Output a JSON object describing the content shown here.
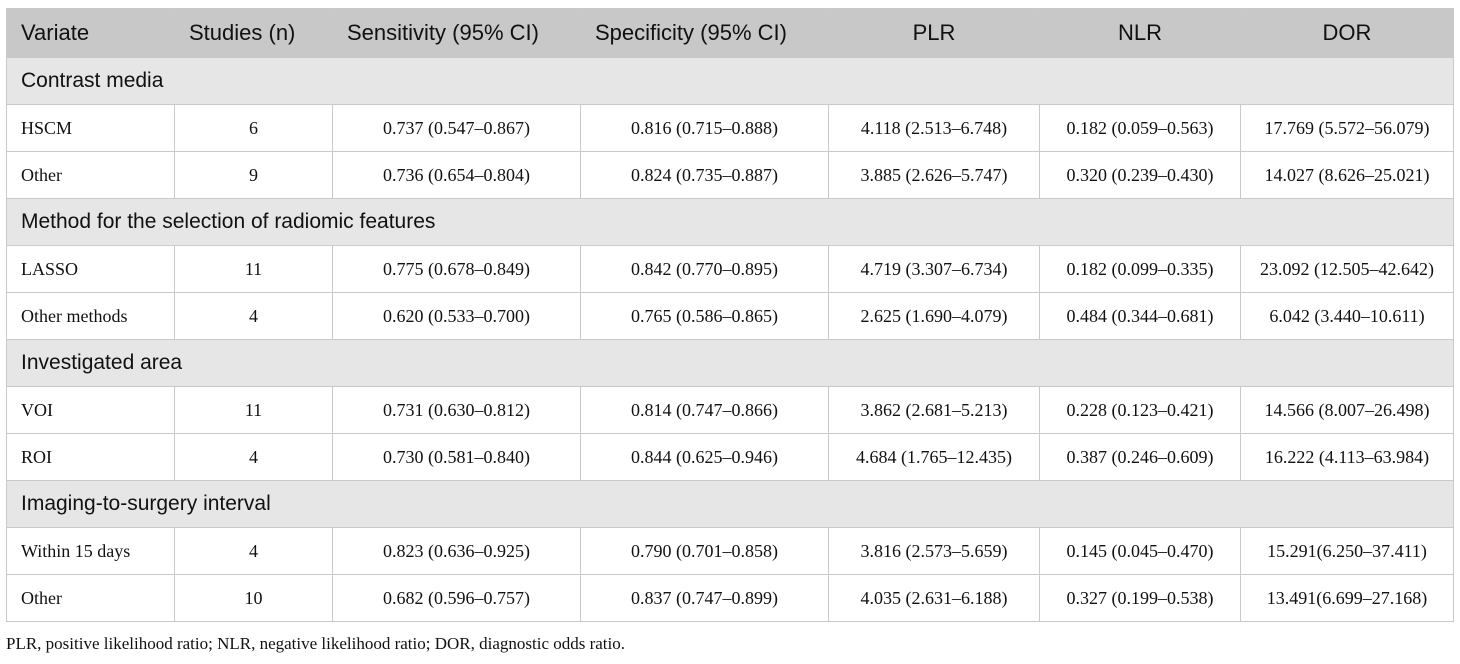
{
  "table": {
    "headers": [
      "Variate",
      "Studies (n)",
      "Sensitivity (95% CI)",
      "Specificity (95% CI)",
      "PLR",
      "NLR",
      "DOR"
    ],
    "groups": [
      {
        "title": "Contrast media",
        "rows": [
          [
            "HSCM",
            "6",
            "0.737 (0.547–0.867)",
            "0.816 (0.715–0.888)",
            "4.118 (2.513–6.748)",
            "0.182 (0.059–0.563)",
            "17.769 (5.572–56.079)"
          ],
          [
            "Other",
            "9",
            "0.736 (0.654–0.804)",
            "0.824 (0.735–0.887)",
            "3.885 (2.626–5.747)",
            "0.320 (0.239–0.430)",
            "14.027 (8.626–25.021)"
          ]
        ]
      },
      {
        "title": "Method for the selection of radiomic features",
        "rows": [
          [
            "LASSO",
            "11",
            "0.775 (0.678–0.849)",
            "0.842 (0.770–0.895)",
            "4.719 (3.307–6.734)",
            "0.182 (0.099–0.335)",
            "23.092 (12.505–42.642)"
          ],
          [
            "Other methods",
            "4",
            "0.620 (0.533–0.700)",
            "0.765 (0.586–0.865)",
            "2.625 (1.690–4.079)",
            "0.484 (0.344–0.681)",
            "6.042 (3.440–10.611)"
          ]
        ]
      },
      {
        "title": "Investigated area",
        "rows": [
          [
            "VOI",
            "11",
            "0.731 (0.630–0.812)",
            "0.814 (0.747–0.866)",
            "3.862 (2.681–5.213)",
            "0.228 (0.123–0.421)",
            "14.566 (8.007–26.498)"
          ],
          [
            "ROI",
            "4",
            "0.730 (0.581–0.840)",
            "0.844 (0.625–0.946)",
            "4.684 (1.765–12.435)",
            "0.387 (0.246–0.609)",
            "16.222 (4.113–63.984)"
          ]
        ]
      },
      {
        "title": "Imaging-to-surgery interval",
        "rows": [
          [
            "Within 15 days",
            "4",
            "0.823 (0.636–0.925)",
            "0.790 (0.701–0.858)",
            "3.816 (2.573–5.659)",
            "0.145 (0.045–0.470)",
            "15.291(6.250–37.411)"
          ],
          [
            "Other",
            "10",
            "0.682 (0.596–0.757)",
            "0.837 (0.747–0.899)",
            "4.035 (2.631–6.188)",
            "0.327 (0.199–0.538)",
            "13.491(6.699–27.168)"
          ]
        ]
      }
    ]
  },
  "footnote": "PLR, positive likelihood ratio; NLR, negative likelihood ratio; DOR, diagnostic odds ratio."
}
